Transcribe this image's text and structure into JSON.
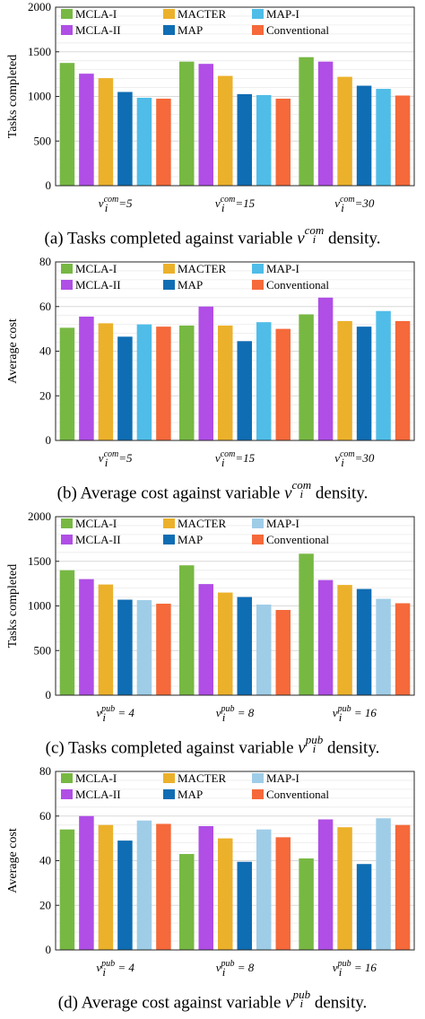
{
  "panels": [
    {
      "caption": {
        "prefix": "(a) Tasks completed against variable ",
        "var": "v",
        "sub": "i",
        "sup": "com",
        "suffix": " density."
      },
      "chart_data": {
        "type": "bar",
        "ylabel": "Tasks completed",
        "ylim": [
          0,
          2000
        ],
        "yticks": [
          0,
          500,
          1000,
          1500,
          2000
        ],
        "grid": true,
        "legend_position": "top-left",
        "categories": [
          "v_i^com=5",
          "v_i^com=15",
          "v_i^com=30"
        ],
        "category_parts": [
          {
            "sup": "com",
            "rest": "=5"
          },
          {
            "sup": "com",
            "rest": "=15"
          },
          {
            "sup": "com",
            "rest": "=30"
          }
        ],
        "series": [
          {
            "name": "MCLA-I",
            "color": "#77b843",
            "values": [
              1375,
              1390,
              1440
            ]
          },
          {
            "name": "MCLA-II",
            "color": "#b04ee6",
            "values": [
              1255,
              1365,
              1390
            ]
          },
          {
            "name": "MACTER",
            "color": "#ecb12b",
            "values": [
              1205,
              1230,
              1220
            ]
          },
          {
            "name": "MAP",
            "color": "#0f6db3",
            "values": [
              1050,
              1025,
              1120
            ]
          },
          {
            "name": "MAP-I",
            "color": "#4fbde8",
            "values": [
              985,
              1015,
              1085
            ]
          },
          {
            "name": "Conventional",
            "color": "#f5693a",
            "values": [
              975,
              975,
              1010
            ]
          }
        ]
      }
    },
    {
      "caption": {
        "prefix": "(b) Average cost against variable ",
        "var": "v",
        "sub": "i",
        "sup": "com",
        "suffix": " density."
      },
      "chart_data": {
        "type": "bar",
        "ylabel": "Average cost",
        "ylim": [
          0,
          80
        ],
        "yticks": [
          0,
          20,
          40,
          60,
          80
        ],
        "grid": true,
        "legend_position": "top-left",
        "categories": [
          "v_i^com=5",
          "v_i^com=15",
          "v_i^com=30"
        ],
        "category_parts": [
          {
            "sup": "com",
            "rest": "=5"
          },
          {
            "sup": "com",
            "rest": "=15"
          },
          {
            "sup": "com",
            "rest": "=30"
          }
        ],
        "series": [
          {
            "name": "MCLA-I",
            "color": "#77b843",
            "values": [
              50.5,
              51.5,
              56.5
            ]
          },
          {
            "name": "MCLA-II",
            "color": "#b04ee6",
            "values": [
              55.5,
              60,
              64
            ]
          },
          {
            "name": "MACTER",
            "color": "#ecb12b",
            "values": [
              52.5,
              51.5,
              53.5
            ]
          },
          {
            "name": "MAP",
            "color": "#0f6db3",
            "values": [
              46.5,
              44.5,
              51
            ]
          },
          {
            "name": "MAP-I",
            "color": "#4fbde8",
            "values": [
              52,
              53,
              58
            ]
          },
          {
            "name": "Conventional",
            "color": "#f5693a",
            "values": [
              51,
              50,
              53.5
            ]
          }
        ]
      }
    },
    {
      "caption": {
        "prefix": "(c) Tasks completed against variable ",
        "var": "v",
        "sub": "i",
        "sup": "pub",
        "suffix": " density."
      },
      "chart_data": {
        "type": "bar",
        "ylabel": "Tasks completed",
        "ylim": [
          0,
          2000
        ],
        "yticks": [
          0,
          500,
          1000,
          1500,
          2000
        ],
        "grid": true,
        "legend_position": "top-left",
        "categories": [
          "v_i^pub = 4",
          "v_i^pub = 8",
          "v_i^pub = 16"
        ],
        "category_parts": [
          {
            "sup": "pub",
            "rest": " = 4"
          },
          {
            "sup": "pub",
            "rest": " = 8"
          },
          {
            "sup": "pub",
            "rest": " = 16"
          }
        ],
        "series": [
          {
            "name": "MCLA-I",
            "color": "#77b843",
            "values": [
              1400,
              1455,
              1585
            ]
          },
          {
            "name": "MCLA-II",
            "color": "#b04ee6",
            "values": [
              1300,
              1245,
              1290
            ]
          },
          {
            "name": "MACTER",
            "color": "#ecb12b",
            "values": [
              1240,
              1150,
              1235
            ]
          },
          {
            "name": "MAP",
            "color": "#0f6db3",
            "values": [
              1070,
              1100,
              1190
            ]
          },
          {
            "name": "MAP-I",
            "color": "#9fcde8",
            "values": [
              1065,
              1015,
              1080
            ]
          },
          {
            "name": "Conventional",
            "color": "#f5693a",
            "values": [
              1025,
              955,
              1030
            ]
          }
        ]
      }
    },
    {
      "caption": {
        "prefix": "(d) Average cost against variable ",
        "var": "v",
        "sub": "i",
        "sup": "pub",
        "suffix": " density."
      },
      "chart_data": {
        "type": "bar",
        "ylabel": "Average cost",
        "ylim": [
          0,
          80
        ],
        "yticks": [
          0,
          20,
          40,
          60,
          80
        ],
        "grid": true,
        "legend_position": "top-left",
        "categories": [
          "v_i^pub = 4",
          "v_i^pub = 8",
          "v_i^pub = 16"
        ],
        "category_parts": [
          {
            "sup": "pub",
            "rest": " = 4"
          },
          {
            "sup": "pub",
            "rest": " = 8"
          },
          {
            "sup": "pub",
            "rest": " = 16"
          }
        ],
        "series": [
          {
            "name": "MCLA-I",
            "color": "#77b843",
            "values": [
              54,
              43,
              41
            ]
          },
          {
            "name": "MCLA-II",
            "color": "#b04ee6",
            "values": [
              60,
              55.5,
              58.5
            ]
          },
          {
            "name": "MACTER",
            "color": "#ecb12b",
            "values": [
              56,
              50,
              55
            ]
          },
          {
            "name": "MAP",
            "color": "#0f6db3",
            "values": [
              49,
              39.5,
              38.5
            ]
          },
          {
            "name": "MAP-I",
            "color": "#9fcde8",
            "values": [
              58,
              54,
              59
            ]
          },
          {
            "name": "Conventional",
            "color": "#f5693a",
            "values": [
              56.5,
              50.5,
              56
            ]
          }
        ]
      }
    }
  ]
}
